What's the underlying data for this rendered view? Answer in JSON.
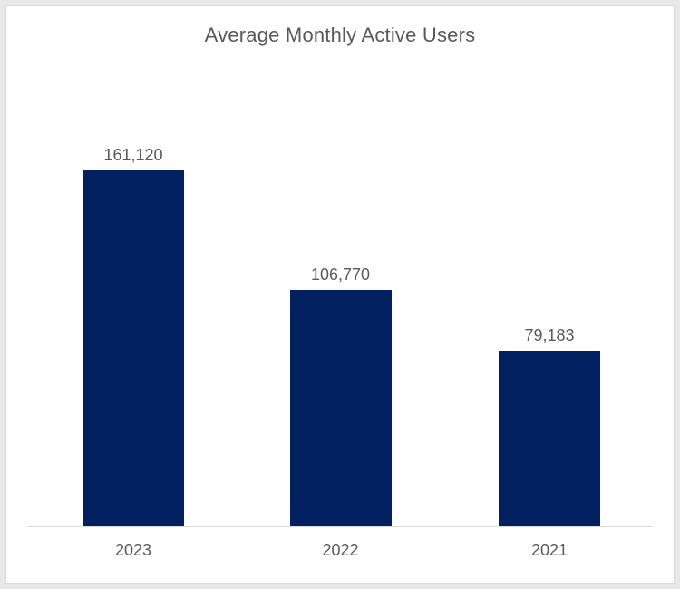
{
  "chart_data": {
    "type": "bar",
    "title": "Average Monthly Active Users",
    "categories": [
      "2023",
      "2022",
      "2021"
    ],
    "values": [
      161120,
      106770,
      79183
    ],
    "value_labels": [
      "161,120",
      "106,770",
      "79,183"
    ],
    "xlabel": "",
    "ylabel": "",
    "grid": false,
    "legend": false,
    "colors": {
      "bar": "#002060",
      "title_text": "#595959",
      "label_text": "#595959",
      "axis_line": "#d9d9d9",
      "frame_outer": "#e8e8e8",
      "frame_inner_line": "#d8d8d8",
      "background": "#ffffff"
    }
  }
}
